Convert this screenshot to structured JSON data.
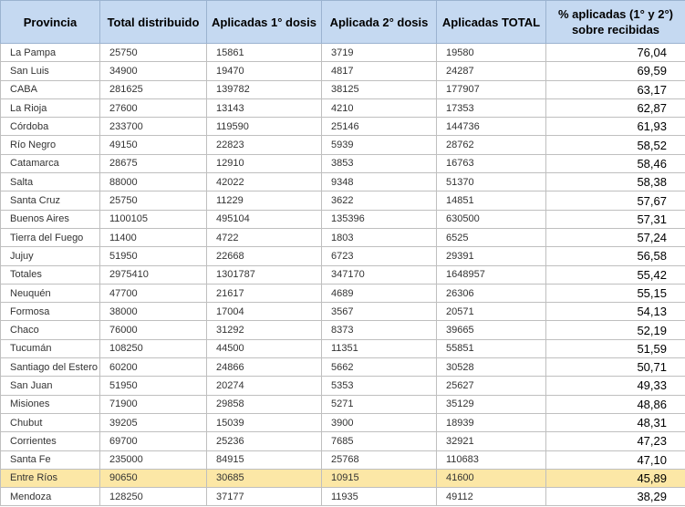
{
  "table": {
    "headers": [
      "Provincia",
      "Total distribuido",
      "Aplicadas 1° dosis",
      "Aplicada 2° dosis",
      "Aplicadas TOTAL",
      "% aplicadas (1° y 2°) sobre recibidas"
    ],
    "rows": [
      [
        "La Pampa",
        25750,
        15861,
        3719,
        19580,
        "76,04"
      ],
      [
        "San Luis",
        34900,
        19470,
        4817,
        24287,
        "69,59"
      ],
      [
        "CABA",
        281625,
        139782,
        38125,
        177907,
        "63,17"
      ],
      [
        "La Rioja",
        27600,
        13143,
        4210,
        17353,
        "62,87"
      ],
      [
        "Córdoba",
        233700,
        119590,
        25146,
        144736,
        "61,93"
      ],
      [
        "Río Negro",
        49150,
        22823,
        5939,
        28762,
        "58,52"
      ],
      [
        "Catamarca",
        28675,
        12910,
        3853,
        16763,
        "58,46"
      ],
      [
        "Salta",
        88000,
        42022,
        9348,
        51370,
        "58,38"
      ],
      [
        "Santa Cruz",
        25750,
        11229,
        3622,
        14851,
        "57,67"
      ],
      [
        "Buenos Aires",
        1100105,
        495104,
        135396,
        630500,
        "57,31"
      ],
      [
        "Tierra del Fuego",
        11400,
        4722,
        1803,
        6525,
        "57,24"
      ],
      [
        "Jujuy",
        51950,
        22668,
        6723,
        29391,
        "56,58"
      ],
      [
        "Totales",
        2975410,
        1301787,
        347170,
        1648957,
        "55,42"
      ],
      [
        "Neuquén",
        47700,
        21617,
        4689,
        26306,
        "55,15"
      ],
      [
        "Formosa",
        38000,
        17004,
        3567,
        20571,
        "54,13"
      ],
      [
        "Chaco",
        76000,
        31292,
        8373,
        39665,
        "52,19"
      ],
      [
        "Tucumán",
        108250,
        44500,
        11351,
        55851,
        "51,59"
      ],
      [
        "Santiago del Estero",
        60200,
        24866,
        5662,
        30528,
        "50,71"
      ],
      [
        "San Juan",
        51950,
        20274,
        5353,
        25627,
        "49,33"
      ],
      [
        "Misiones",
        71900,
        29858,
        5271,
        35129,
        "48,86"
      ],
      [
        "Chubut",
        39205,
        15039,
        3900,
        18939,
        "48,31"
      ],
      [
        "Corrientes",
        69700,
        25236,
        7685,
        32921,
        "47,23"
      ],
      [
        "Santa Fe",
        235000,
        84915,
        25768,
        110683,
        "47,10"
      ],
      [
        "Entre Ríos",
        90650,
        30685,
        10915,
        41600,
        "45,89"
      ],
      [
        "Mendoza",
        128250,
        37177,
        11935,
        49112,
        "38,29"
      ]
    ]
  }
}
